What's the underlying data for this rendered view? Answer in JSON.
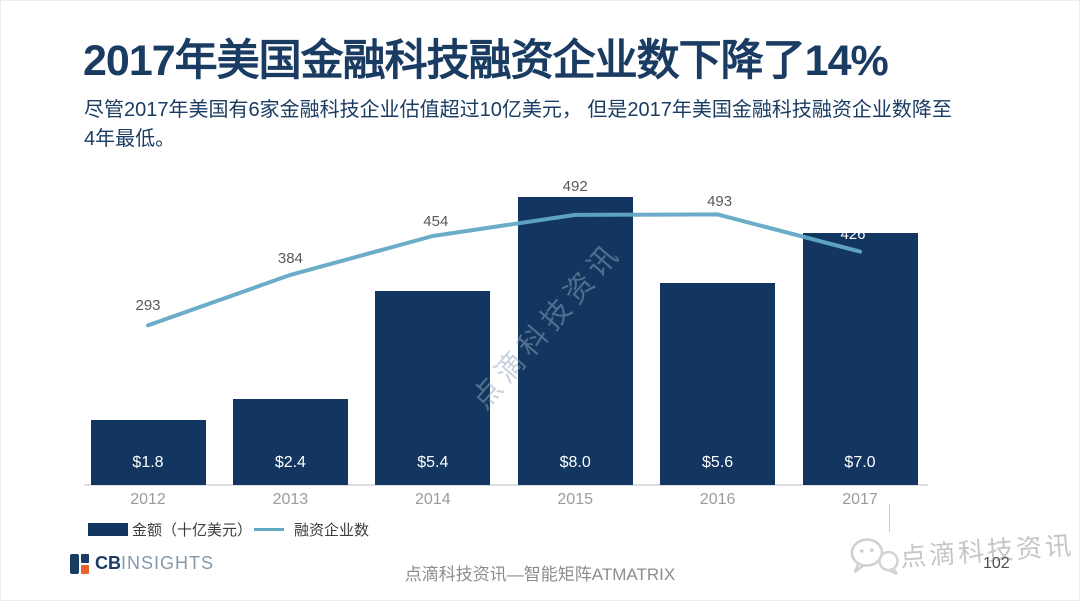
{
  "slide": {
    "title": "2017年美国金融科技融资企业数下降了14%",
    "subtitle_line1": "尽管2017年美国有6家金融科技企业估值超过10亿美元， 但是2017年美国金融科技融资企业数降至",
    "subtitle_line2": "4年最低。"
  },
  "chart_data": {
    "type": "bar",
    "categories": [
      "2012",
      "2013",
      "2014",
      "2015",
      "2016",
      "2017"
    ],
    "series": [
      {
        "name": "金额（十亿美元）",
        "type": "bar",
        "values": [
          1.8,
          2.4,
          5.4,
          8.0,
          5.6,
          7.0
        ],
        "labels": [
          "$1.8",
          "$2.4",
          "$5.4",
          "$8.0",
          "$5.6",
          "$7.0"
        ],
        "color": "#12365F"
      },
      {
        "name": "融资企业数",
        "type": "line",
        "values": [
          293,
          384,
          454,
          492,
          493,
          426
        ],
        "labels": [
          "293",
          "384",
          "454",
          "492",
          "493",
          "426"
        ],
        "color": "#63A9C6"
      }
    ],
    "title": "2017年美国金融科技融资企业数下降了14%",
    "xlabel": "",
    "ylabel": "",
    "legend_position": "bottom-left",
    "grid": false,
    "bar_ylim": [
      0,
      9
    ],
    "line_ylim": [
      0,
      550
    ]
  },
  "watermarks": {
    "center": "点滴科技资讯",
    "bottom_right": "点滴科技资讯"
  },
  "footer": {
    "logo_cb": "CB",
    "logo_insights": "INSIGHTS",
    "center_text": "点滴科技资讯—智能矩阵ATMATRIX",
    "page_number": "102"
  },
  "colors": {
    "title_navy": "#1A3C62",
    "bar_navy": "#12365F",
    "line_blue": "#63A9C6",
    "logo_orange": "#E8622B",
    "label_gray": "#595959",
    "year_gray": "#9B9B9B"
  }
}
